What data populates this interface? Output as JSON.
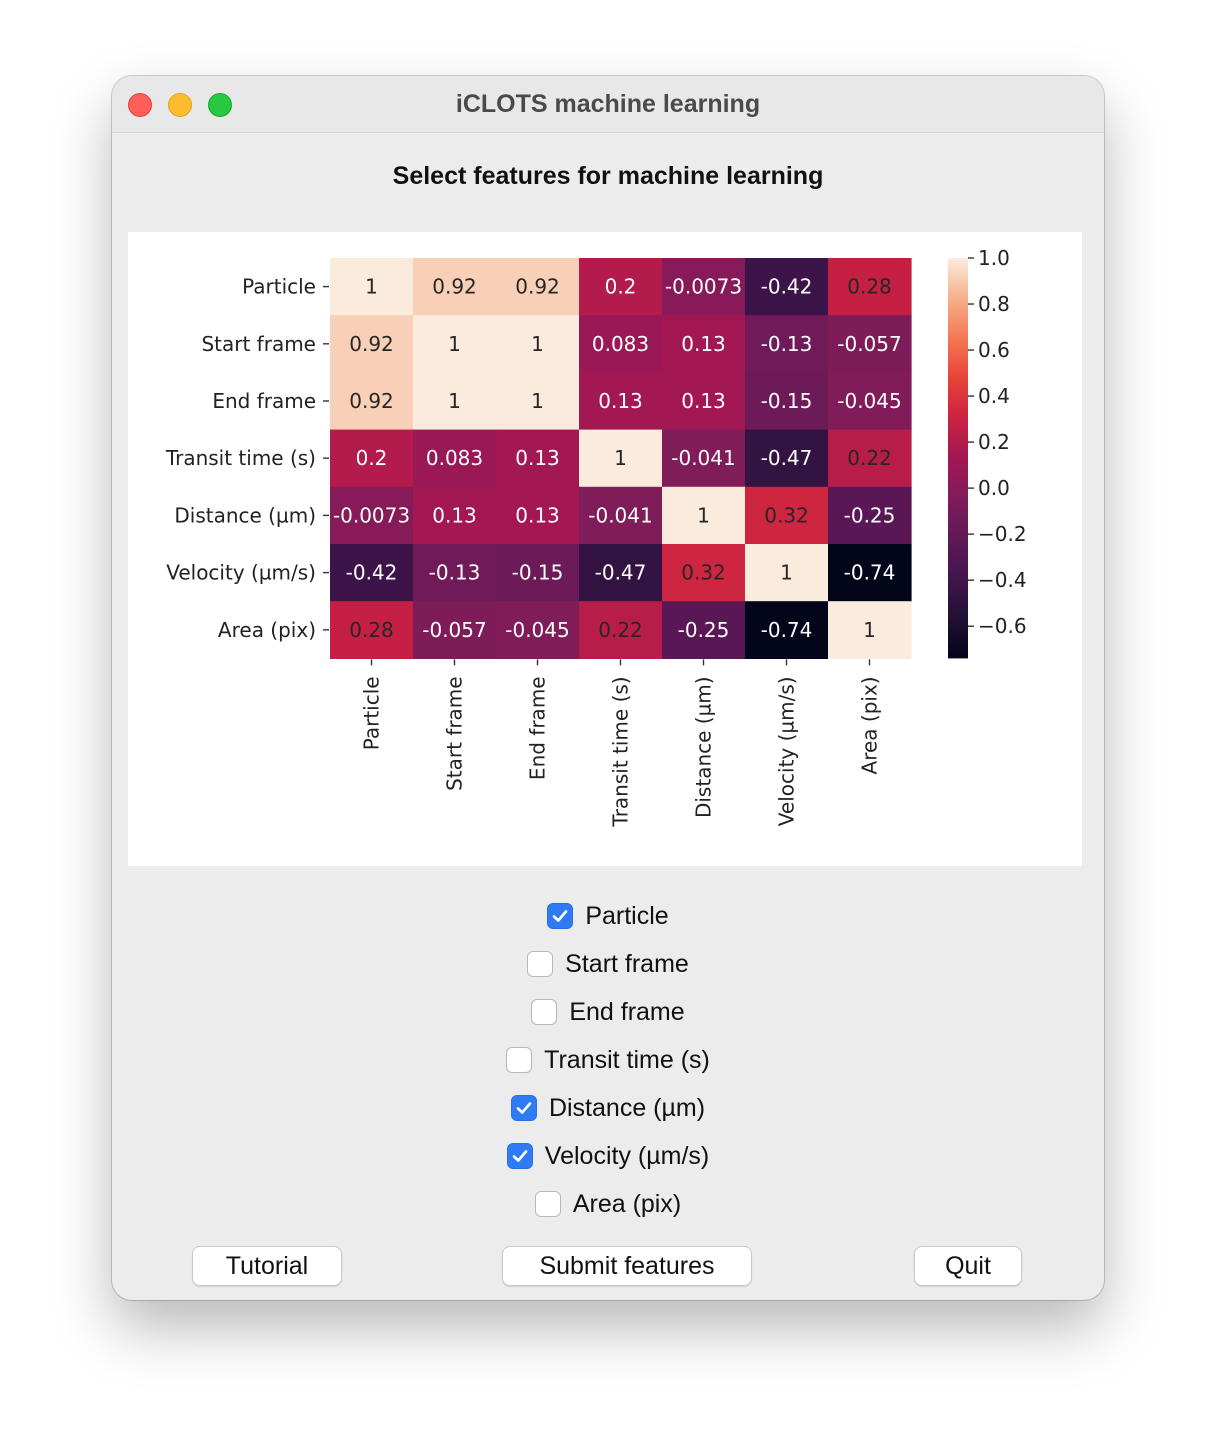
{
  "window": {
    "title": "iCLOTS machine learning"
  },
  "heading": "Select features for machine learning",
  "chart_data": {
    "type": "heatmap",
    "rows": [
      "Particle",
      "Start frame",
      "End frame",
      "Transit time (s)",
      "Distance (µm)",
      "Velocity (µm/s)",
      "Area (pix)"
    ],
    "columns": [
      "Particle",
      "Start frame",
      "End frame",
      "Transit time (s)",
      "Distance (µm)",
      "Velocity (µm/s)",
      "Area (pix)"
    ],
    "values": [
      [
        1,
        0.92,
        0.92,
        0.2,
        -0.0073,
        -0.42,
        0.28
      ],
      [
        0.92,
        1,
        1,
        0.083,
        0.13,
        -0.13,
        -0.057
      ],
      [
        0.92,
        1,
        1,
        0.13,
        0.13,
        -0.15,
        -0.045
      ],
      [
        0.2,
        0.083,
        0.13,
        1,
        -0.041,
        -0.47,
        0.22
      ],
      [
        -0.0073,
        0.13,
        0.13,
        -0.041,
        1,
        0.32,
        -0.25
      ],
      [
        -0.42,
        -0.13,
        -0.15,
        -0.47,
        0.32,
        1,
        -0.74
      ],
      [
        0.28,
        -0.057,
        -0.045,
        0.22,
        -0.25,
        -0.74,
        1
      ]
    ],
    "cell_labels": [
      [
        "1",
        "0.92",
        "0.92",
        "0.2",
        "-0.0073",
        "-0.42",
        "0.28"
      ],
      [
        "0.92",
        "1",
        "1",
        "0.083",
        "0.13",
        "-0.13",
        "-0.057"
      ],
      [
        "0.92",
        "1",
        "1",
        "0.13",
        "0.13",
        "-0.15",
        "-0.045"
      ],
      [
        "0.2",
        "0.083",
        "0.13",
        "1",
        "-0.041",
        "-0.47",
        "0.22"
      ],
      [
        "-0.0073",
        "0.13",
        "0.13",
        "-0.041",
        "1",
        "0.32",
        "-0.25"
      ],
      [
        "-0.42",
        "-0.13",
        "-0.15",
        "-0.47",
        "0.32",
        "1",
        "-0.74"
      ],
      [
        "0.28",
        "-0.057",
        "-0.045",
        "0.22",
        "-0.25",
        "-0.74",
        "1"
      ]
    ],
    "colorbar": {
      "ticks": [
        1.0,
        0.8,
        0.6,
        0.4,
        0.2,
        0.0,
        -0.2,
        -0.4,
        -0.6
      ],
      "tick_labels": [
        "1.0",
        "0.8",
        "0.6",
        "0.4",
        "0.2",
        "0.0",
        "−0.2",
        "−0.4",
        "−0.6"
      ],
      "range": [
        -0.74,
        1.0
      ]
    },
    "colormap": "rocket",
    "title": "",
    "xlabel": "",
    "ylabel": ""
  },
  "features": [
    {
      "label": "Particle",
      "checked": true
    },
    {
      "label": "Start frame",
      "checked": false
    },
    {
      "label": "End frame",
      "checked": false
    },
    {
      "label": "Transit time (s)",
      "checked": false
    },
    {
      "label": "Distance (µm)",
      "checked": true
    },
    {
      "label": "Velocity (µm/s)",
      "checked": true
    },
    {
      "label": "Area (pix)",
      "checked": false
    }
  ],
  "buttons": {
    "tutorial": "Tutorial",
    "submit": "Submit features",
    "quit": "Quit"
  },
  "colors": {
    "checkbox_on": "#2f7bf5",
    "window_bg": "#ececec"
  }
}
